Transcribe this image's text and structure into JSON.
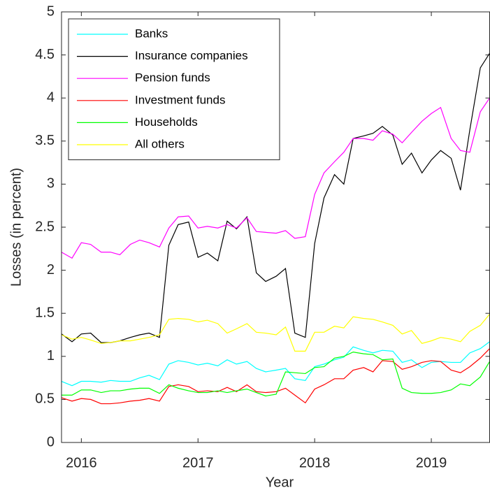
{
  "chart_data": {
    "type": "line",
    "x_label": "Year",
    "y_label": "Losses (in percent)",
    "x": [
      2015.83,
      2015.92,
      2016,
      2016.08,
      2016.17,
      2016.25,
      2016.33,
      2016.42,
      2016.5,
      2016.58,
      2016.67,
      2016.75,
      2016.83,
      2016.92,
      2017,
      2017.08,
      2017.17,
      2017.25,
      2017.33,
      2017.42,
      2017.5,
      2017.58,
      2017.67,
      2017.75,
      2017.83,
      2017.92,
      2018,
      2018.08,
      2018.17,
      2018.25,
      2018.33,
      2018.42,
      2018.5,
      2018.58,
      2018.67,
      2018.75,
      2018.83,
      2018.92,
      2019,
      2019.08,
      2019.17,
      2019.25,
      2019.33,
      2019.42,
      2019.5
    ],
    "xlim": [
      2015.83,
      2019.5
    ],
    "xticks": [
      2016,
      2017,
      2018,
      2019
    ],
    "ylim": [
      0,
      5
    ],
    "yticks": [
      0,
      0.5,
      1,
      1.5,
      2,
      2.5,
      3,
      3.5,
      4,
      4.5,
      5
    ],
    "grid": false,
    "legend": "top-left",
    "series": [
      {
        "name": "Banks",
        "color": "#00ffff",
        "values": [
          0.71,
          0.66,
          0.71,
          0.71,
          0.7,
          0.72,
          0.71,
          0.71,
          0.75,
          0.78,
          0.73,
          0.91,
          0.95,
          0.93,
          0.9,
          0.92,
          0.89,
          0.96,
          0.91,
          0.94,
          0.86,
          0.82,
          0.84,
          0.86,
          0.74,
          0.72,
          0.88,
          0.91,
          0.96,
          0.99,
          1.11,
          1.07,
          1.04,
          1.07,
          1.06,
          0.93,
          0.96,
          0.87,
          0.93,
          0.94,
          0.93,
          0.93,
          1.04,
          1.09,
          1.17
        ]
      },
      {
        "name": "Insurance companies",
        "color": "#000000",
        "values": [
          1.26,
          1.17,
          1.26,
          1.27,
          1.16,
          1.16,
          1.18,
          1.22,
          1.25,
          1.27,
          1.22,
          2.29,
          2.53,
          2.56,
          2.15,
          2.2,
          2.11,
          2.57,
          2.48,
          2.62,
          1.97,
          1.87,
          1.93,
          2.02,
          1.27,
          1.22,
          2.31,
          2.84,
          3.11,
          3.0,
          3.53,
          3.56,
          3.59,
          3.67,
          3.57,
          3.23,
          3.36,
          3.13,
          3.28,
          3.39,
          3.3,
          2.93,
          3.63,
          4.35,
          4.52
        ]
      },
      {
        "name": "Pension funds",
        "color": "#ff00ff",
        "values": [
          2.21,
          2.14,
          2.32,
          2.3,
          2.21,
          2.21,
          2.18,
          2.3,
          2.35,
          2.32,
          2.27,
          2.49,
          2.62,
          2.63,
          2.49,
          2.51,
          2.49,
          2.53,
          2.49,
          2.61,
          2.45,
          2.44,
          2.43,
          2.46,
          2.37,
          2.39,
          2.88,
          3.13,
          3.26,
          3.37,
          3.53,
          3.53,
          3.51,
          3.62,
          3.58,
          3.48,
          3.6,
          3.73,
          3.82,
          3.89,
          3.53,
          3.39,
          3.37,
          3.84,
          4.0
        ]
      },
      {
        "name": "Investment funds",
        "color": "#ff0000",
        "values": [
          0.52,
          0.48,
          0.51,
          0.5,
          0.45,
          0.45,
          0.46,
          0.48,
          0.49,
          0.51,
          0.48,
          0.65,
          0.67,
          0.65,
          0.59,
          0.6,
          0.59,
          0.64,
          0.59,
          0.67,
          0.59,
          0.58,
          0.59,
          0.63,
          0.55,
          0.46,
          0.62,
          0.67,
          0.74,
          0.74,
          0.84,
          0.87,
          0.82,
          0.95,
          0.94,
          0.85,
          0.88,
          0.93,
          0.95,
          0.94,
          0.84,
          0.81,
          0.88,
          0.98,
          1.09
        ]
      },
      {
        "name": "Households",
        "color": "#00ff00",
        "values": [
          0.55,
          0.55,
          0.61,
          0.61,
          0.58,
          0.6,
          0.6,
          0.62,
          0.63,
          0.63,
          0.57,
          0.67,
          0.63,
          0.6,
          0.58,
          0.58,
          0.6,
          0.58,
          0.6,
          0.62,
          0.58,
          0.54,
          0.56,
          0.82,
          0.81,
          0.8,
          0.87,
          0.88,
          0.98,
          1.0,
          1.05,
          1.03,
          1.02,
          0.96,
          0.97,
          0.63,
          0.58,
          0.57,
          0.57,
          0.58,
          0.61,
          0.68,
          0.66,
          0.76,
          0.94
        ]
      },
      {
        "name": "All others",
        "color": "#ffff00",
        "values": [
          1.25,
          1.2,
          1.22,
          1.19,
          1.15,
          1.16,
          1.18,
          1.18,
          1.2,
          1.22,
          1.25,
          1.43,
          1.44,
          1.43,
          1.4,
          1.42,
          1.38,
          1.27,
          1.32,
          1.38,
          1.28,
          1.27,
          1.25,
          1.34,
          1.06,
          1.06,
          1.28,
          1.28,
          1.35,
          1.33,
          1.46,
          1.44,
          1.43,
          1.4,
          1.36,
          1.26,
          1.3,
          1.15,
          1.18,
          1.22,
          1.2,
          1.17,
          1.29,
          1.36,
          1.49
        ]
      }
    ]
  }
}
